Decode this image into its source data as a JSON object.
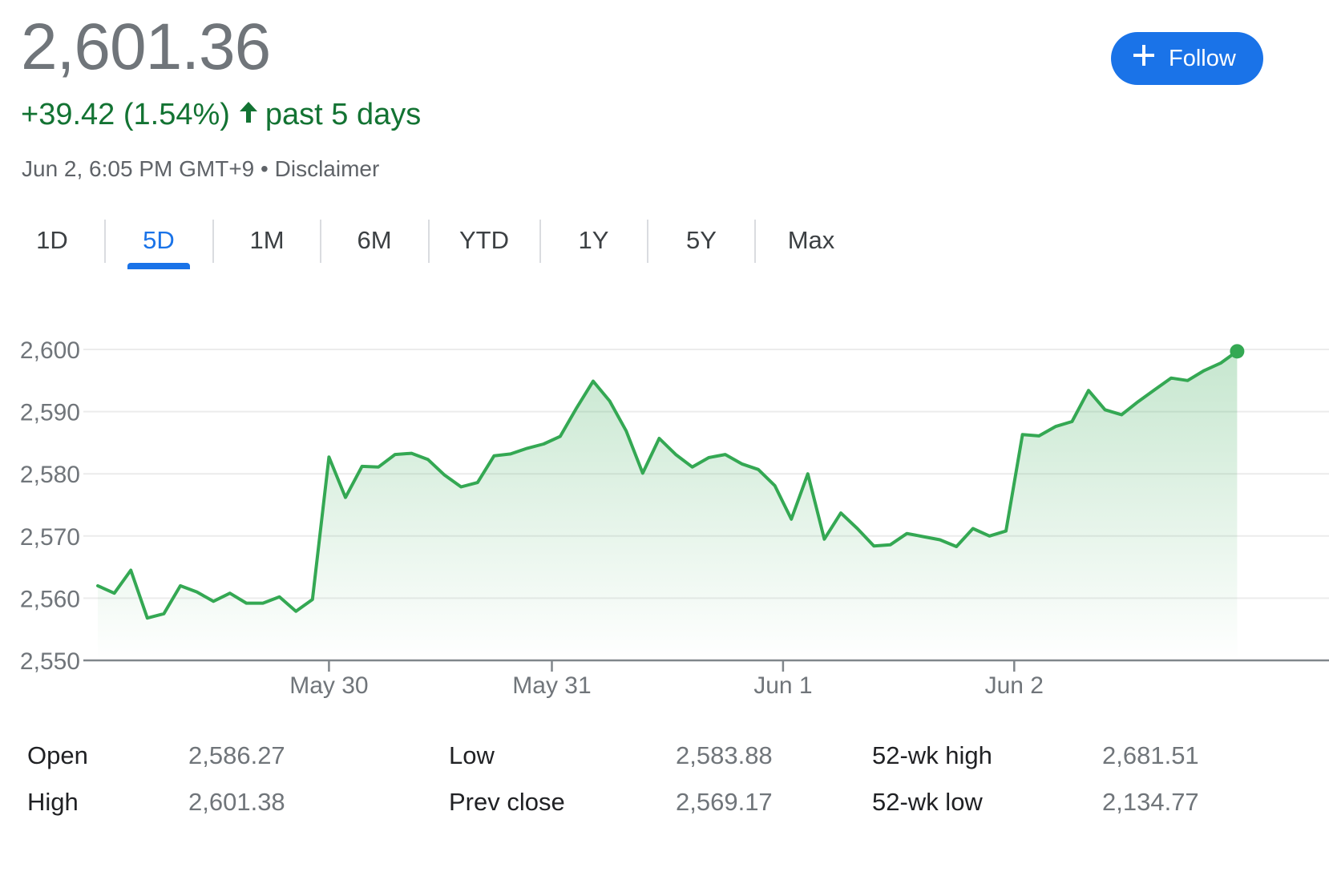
{
  "header": {
    "price": "2,601.36",
    "change": "+39.42 (1.54%)",
    "change_period": "past 5 days",
    "timestamp": "Jun 2, 6:05 PM GMT+9",
    "separator": "•",
    "disclaimer": "Disclaimer",
    "follow_label": "Follow",
    "follow_icon": "plus-icon",
    "arrow_icon": "arrow-up-icon",
    "up_color": "#137333",
    "accent_color": "#1a73e8"
  },
  "tabs": [
    {
      "label": "1D",
      "active": false
    },
    {
      "label": "5D",
      "active": true
    },
    {
      "label": "1M",
      "active": false
    },
    {
      "label": "6M",
      "active": false
    },
    {
      "label": "YTD",
      "active": false
    },
    {
      "label": "1Y",
      "active": false
    },
    {
      "label": "5Y",
      "active": false
    },
    {
      "label": "Max",
      "active": false
    }
  ],
  "chart_data": {
    "type": "area",
    "title": "",
    "xlabel": "",
    "ylabel": "",
    "ylim": [
      2550,
      2600
    ],
    "yticks": [
      "2,600",
      "2,590",
      "2,580",
      "2,570",
      "2,560",
      "2,550"
    ],
    "ytick_values": [
      2600,
      2590,
      2580,
      2570,
      2560,
      2550
    ],
    "xticks": [
      {
        "label": "May 30",
        "x": 14
      },
      {
        "label": "May 31",
        "x": 27.5
      },
      {
        "label": "Jun 1",
        "x": 41.5
      },
      {
        "label": "Jun 2",
        "x": 55.5
      }
    ],
    "xlim": [
      0,
      69.8
    ],
    "grid": true,
    "line_color": "#34a853",
    "series": [
      {
        "values": [
          2562.0,
          2560.8,
          2564.5,
          2556.8,
          2557.5,
          2562.0,
          2561.0,
          2559.5,
          2560.8,
          2559.2,
          2559.2,
          2560.2,
          2557.9,
          2559.8,
          2582.7,
          2576.2,
          2581.2,
          2581.1,
          2583.1,
          2583.3,
          2582.3,
          2579.8,
          2577.9,
          2578.6,
          2582.9,
          2583.2,
          2584.1,
          2584.8,
          2586.0,
          2590.6,
          2594.9,
          2591.7,
          2586.9,
          2580.1,
          2585.7,
          2583.1,
          2581.1,
          2582.6,
          2583.1,
          2581.6,
          2580.7,
          2578.1,
          2572.7,
          2580.0,
          2569.5,
          2573.7,
          2571.2,
          2568.4,
          2568.6,
          2570.4,
          2569.9,
          2569.4,
          2568.3,
          2571.2,
          2570.0,
          2570.8,
          2586.3,
          2586.1,
          2587.6,
          2588.4,
          2593.4,
          2590.3,
          2589.5,
          2591.6,
          2593.5,
          2595.4,
          2595.0,
          2596.6,
          2597.8,
          2599.7
        ]
      }
    ]
  },
  "stats": [
    {
      "label": "Open",
      "value": "2,586.27"
    },
    {
      "label": "High",
      "value": "2,601.38"
    },
    {
      "label": "Low",
      "value": "2,583.88"
    },
    {
      "label": "Prev close",
      "value": "2,569.17"
    },
    {
      "label": "52-wk high",
      "value": "2,681.51"
    },
    {
      "label": "52-wk low",
      "value": "2,134.77"
    }
  ]
}
